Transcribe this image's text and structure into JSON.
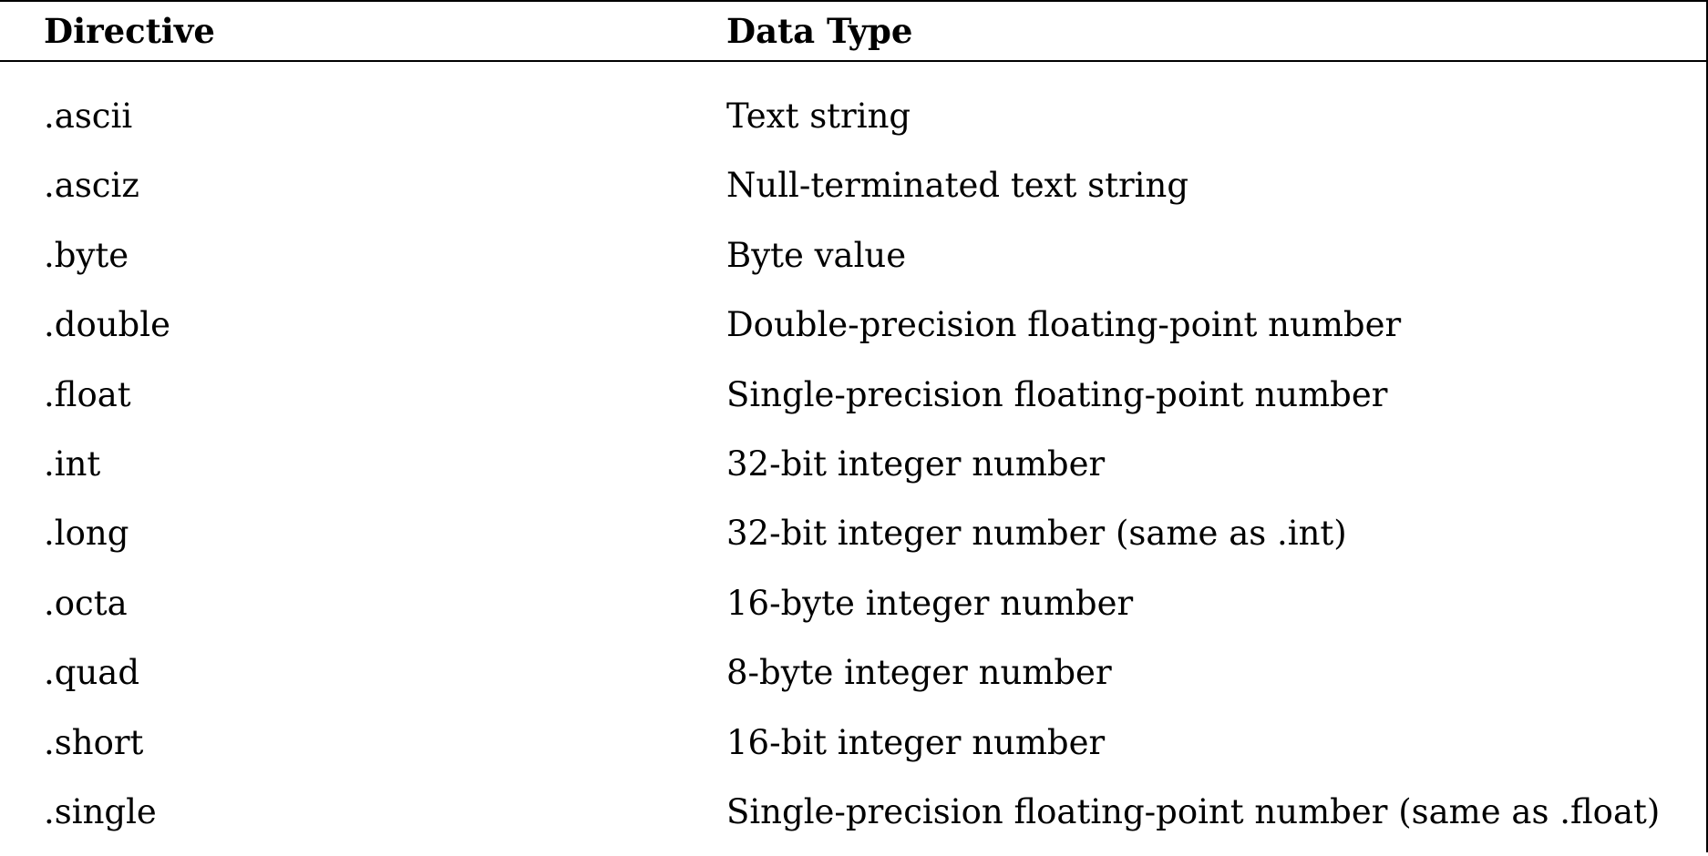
{
  "table": {
    "headers": [
      "Directive",
      "Data Type"
    ],
    "rows": [
      [
        ".ascii",
        "Text string"
      ],
      [
        ".asciz",
        "Null-terminated text string"
      ],
      [
        ".byte",
        "Byte value"
      ],
      [
        ".double",
        "Double-precision floating-point number"
      ],
      [
        ".float",
        "Single-precision floating-point number"
      ],
      [
        ".int",
        "32-bit integer number"
      ],
      [
        ".long",
        "32-bit integer number (same as .int)"
      ],
      [
        ".octa",
        "16-byte integer number"
      ],
      [
        ".quad",
        "8-byte integer number"
      ],
      [
        ".short",
        "16-bit integer number"
      ],
      [
        ".single",
        "Single-precision floating-point number (same as .float)"
      ]
    ]
  }
}
